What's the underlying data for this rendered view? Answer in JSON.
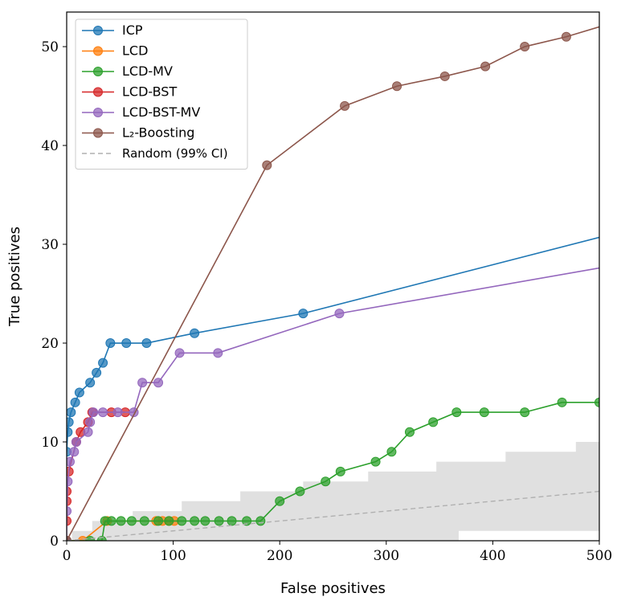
{
  "chart_data": {
    "type": "line",
    "xlabel": "False positives",
    "ylabel": "True positives",
    "xlim": [
      0,
      500
    ],
    "ylim": [
      0,
      53.5
    ],
    "x_ticks": [
      0,
      100,
      200,
      300,
      400,
      500
    ],
    "y_ticks": [
      0,
      10,
      20,
      30,
      40,
      50
    ],
    "legend_position": "top-left",
    "grid": false,
    "series": [
      {
        "name": "ICP",
        "color": "#1f77b4",
        "points": [
          [
            0,
            9
          ],
          [
            1,
            11
          ],
          [
            2,
            12
          ],
          [
            4,
            13
          ],
          [
            8,
            14
          ],
          [
            12,
            15
          ],
          [
            22,
            16
          ],
          [
            28,
            17
          ],
          [
            34,
            18
          ],
          [
            41,
            20
          ],
          [
            56,
            20
          ],
          [
            75,
            20
          ],
          [
            120,
            21
          ],
          [
            222,
            23
          ],
          [
            500,
            30.7
          ]
        ]
      },
      {
        "name": "LCD",
        "color": "#ff7f0e",
        "points": [
          [
            0,
            0
          ],
          [
            15,
            0
          ],
          [
            38,
            2
          ],
          [
            84,
            2
          ],
          [
            90,
            2
          ],
          [
            96,
            2
          ],
          [
            101,
            2
          ]
        ]
      },
      {
        "name": "LCD-MV",
        "color": "#2ca02c",
        "points": [
          [
            0,
            0
          ],
          [
            22,
            0
          ],
          [
            33,
            0
          ],
          [
            36,
            2
          ],
          [
            42,
            2
          ],
          [
            51,
            2
          ],
          [
            61,
            2
          ],
          [
            73,
            2
          ],
          [
            86,
            2
          ],
          [
            96,
            2
          ],
          [
            108,
            2
          ],
          [
            120,
            2
          ],
          [
            130,
            2
          ],
          [
            143,
            2
          ],
          [
            155,
            2
          ],
          [
            169,
            2
          ],
          [
            182,
            2
          ],
          [
            200,
            4
          ],
          [
            219,
            5
          ],
          [
            243,
            6
          ],
          [
            257,
            7
          ],
          [
            290,
            8
          ],
          [
            305,
            9
          ],
          [
            322,
            11
          ],
          [
            344,
            12
          ],
          [
            366,
            13
          ],
          [
            392,
            13
          ],
          [
            430,
            13
          ],
          [
            465,
            14
          ],
          [
            500,
            14
          ]
        ]
      },
      {
        "name": "LCD-BST",
        "color": "#d62728",
        "points": [
          [
            0,
            2
          ],
          [
            0,
            4
          ],
          [
            0,
            5
          ],
          [
            2,
            7
          ],
          [
            9,
            10
          ],
          [
            13,
            11
          ],
          [
            20,
            12
          ],
          [
            24,
            13
          ],
          [
            42,
            13
          ],
          [
            55,
            13
          ]
        ]
      },
      {
        "name": "LCD-BST-MV",
        "color": "#9467bd",
        "points": [
          [
            0,
            0
          ],
          [
            0,
            3
          ],
          [
            1,
            6
          ],
          [
            3,
            8
          ],
          [
            7,
            9
          ],
          [
            9,
            10
          ],
          [
            20,
            11
          ],
          [
            22,
            12
          ],
          [
            25,
            13
          ],
          [
            34,
            13
          ],
          [
            48,
            13
          ],
          [
            63,
            13
          ],
          [
            71,
            16
          ],
          [
            86,
            16
          ],
          [
            106,
            19
          ],
          [
            142,
            19
          ],
          [
            256,
            23
          ],
          [
            500,
            27.6
          ]
        ]
      },
      {
        "name": "$L_2$-Boosting",
        "display_name": "L₂-Boosting",
        "color": "#8c564b",
        "points": [
          [
            0,
            0
          ],
          [
            188,
            38
          ],
          [
            261,
            44
          ],
          [
            310,
            46
          ],
          [
            355,
            47
          ],
          [
            393,
            48
          ],
          [
            430,
            50
          ],
          [
            469,
            51
          ],
          [
            500,
            52
          ]
        ]
      },
      {
        "name": "Random (99% CI)",
        "color": "#b0b0b0",
        "dashed": true,
        "points": [
          [
            0,
            0
          ],
          [
            500,
            5
          ]
        ]
      }
    ],
    "ci_band": {
      "color": "#e0e0e0",
      "upper_steps": [
        [
          0,
          0
        ],
        [
          5,
          0
        ],
        [
          5,
          1
        ],
        [
          24,
          1
        ],
        [
          24,
          2
        ],
        [
          62,
          2
        ],
        [
          62,
          3
        ],
        [
          108,
          3
        ],
        [
          108,
          4
        ],
        [
          163,
          4
        ],
        [
          163,
          5
        ],
        [
          222,
          5
        ],
        [
          222,
          6
        ],
        [
          283,
          6
        ],
        [
          283,
          7
        ],
        [
          347,
          7
        ],
        [
          347,
          8
        ],
        [
          412,
          8
        ],
        [
          412,
          9
        ],
        [
          478,
          9
        ],
        [
          478,
          10
        ],
        [
          500,
          10
        ]
      ],
      "lower_steps": [
        [
          0,
          0
        ],
        [
          368,
          0
        ],
        [
          368,
          1
        ],
        [
          500,
          1
        ]
      ]
    }
  }
}
